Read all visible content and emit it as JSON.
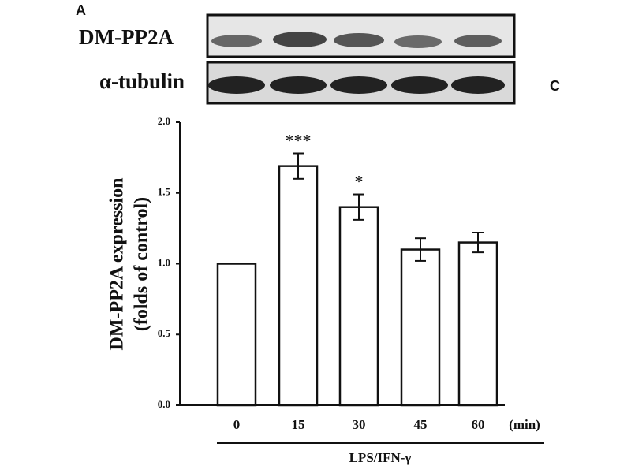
{
  "chart_data": {
    "type": "bar",
    "panel_label": "A",
    "side_label": "C",
    "blot_labels": [
      "DM-PP2A",
      "α-tubulin"
    ],
    "ylabel": [
      "DM-PP2A expression",
      "(folds of control)"
    ],
    "xlabel": "LPS/IFN-γ",
    "x_unit": "(min)",
    "categories": [
      "0",
      "15",
      "30",
      "45",
      "60"
    ],
    "values": [
      1.0,
      1.69,
      1.4,
      1.1,
      1.15
    ],
    "errors": [
      null,
      0.09,
      0.09,
      0.08,
      0.07
    ],
    "significance": [
      null,
      "***",
      "*",
      null,
      null
    ],
    "color": "#ffffff",
    "ylim": [
      0,
      2.0
    ],
    "yticks": [
      {
        "value": 0,
        "label": "0.0"
      },
      {
        "value": 0.5,
        "label": "0.5"
      },
      {
        "value": 1.0,
        "label": "1.0"
      },
      {
        "value": 1.5,
        "label": "1.5"
      },
      {
        "value": 2.0,
        "label": "2.0"
      }
    ]
  }
}
